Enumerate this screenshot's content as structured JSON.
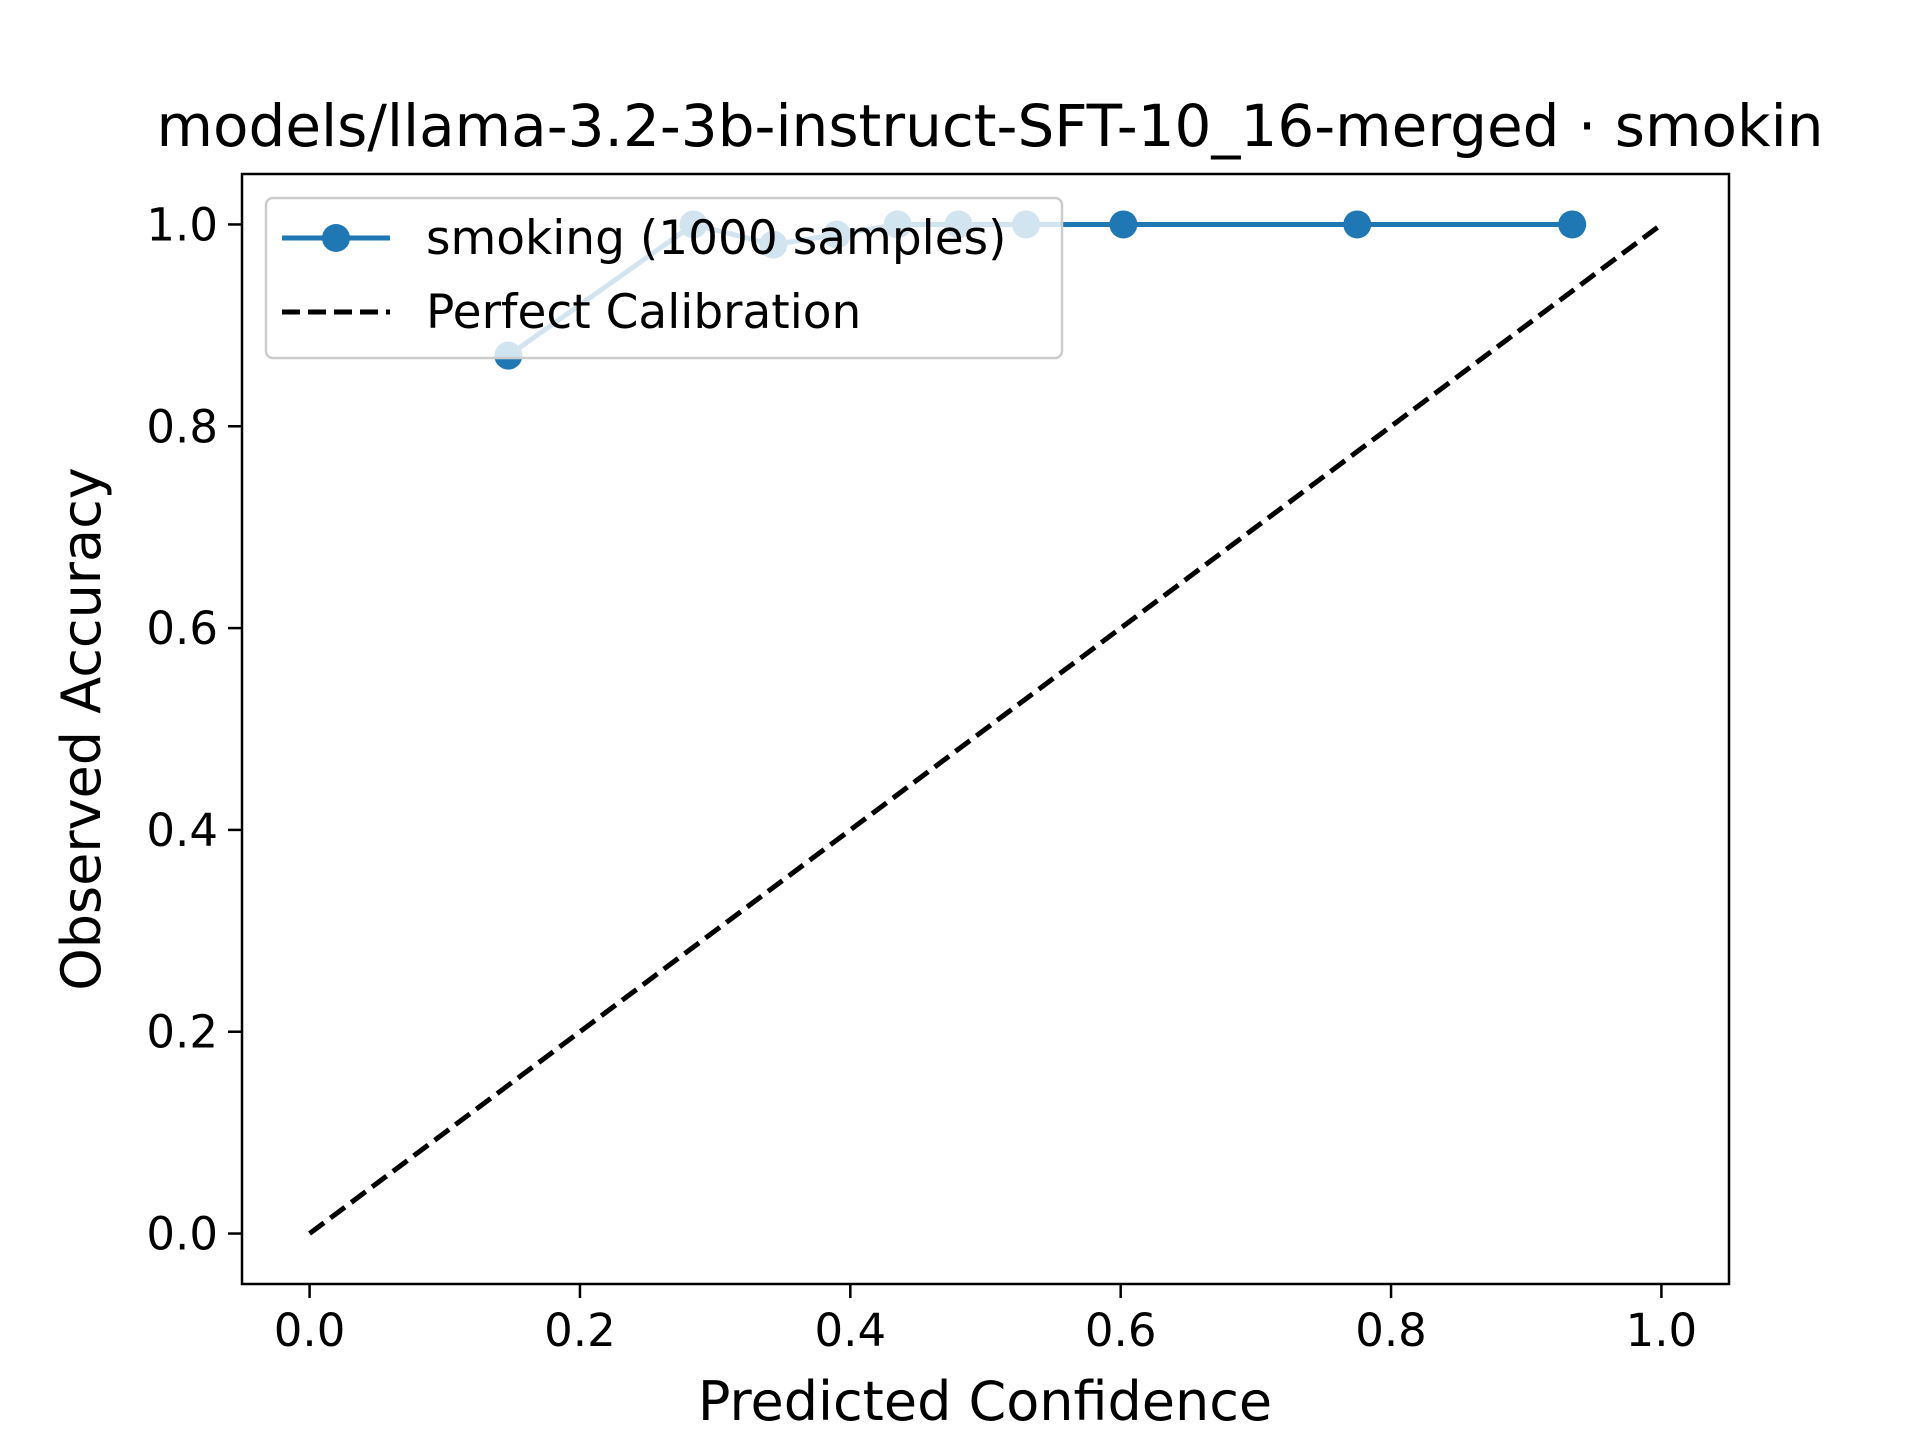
{
  "chart_data": {
    "type": "line",
    "title": "models/llama-3.2-3b-instruct-SFT-10_16-merged · smokin",
    "xlabel": "Predicted Confidence",
    "ylabel": "Observed Accuracy",
    "xlim": [
      -0.05,
      1.05
    ],
    "ylim": [
      -0.05,
      1.05
    ],
    "xticks": [
      "0.0",
      "0.2",
      "0.4",
      "0.6",
      "0.8",
      "1.0"
    ],
    "yticks": [
      "0.0",
      "0.2",
      "0.4",
      "0.6",
      "0.8",
      "1.0"
    ],
    "grid": false,
    "legend_position": "upper-left",
    "series": [
      {
        "name": "smoking (1000 samples)",
        "style": "solid-with-markers",
        "color": "#1f77b4",
        "x": [
          0.147,
          0.284,
          0.343,
          0.39,
          0.435,
          0.48,
          0.53,
          0.602,
          0.775,
          0.934
        ],
        "y": [
          0.87,
          1.0,
          0.98,
          0.99,
          1.0,
          1.0,
          1.0,
          1.0,
          1.0,
          1.0
        ]
      },
      {
        "name": "Perfect Calibration",
        "style": "dashed",
        "color": "#000000",
        "x": [
          0.0,
          1.0
        ],
        "y": [
          0.0,
          1.0
        ]
      }
    ]
  }
}
